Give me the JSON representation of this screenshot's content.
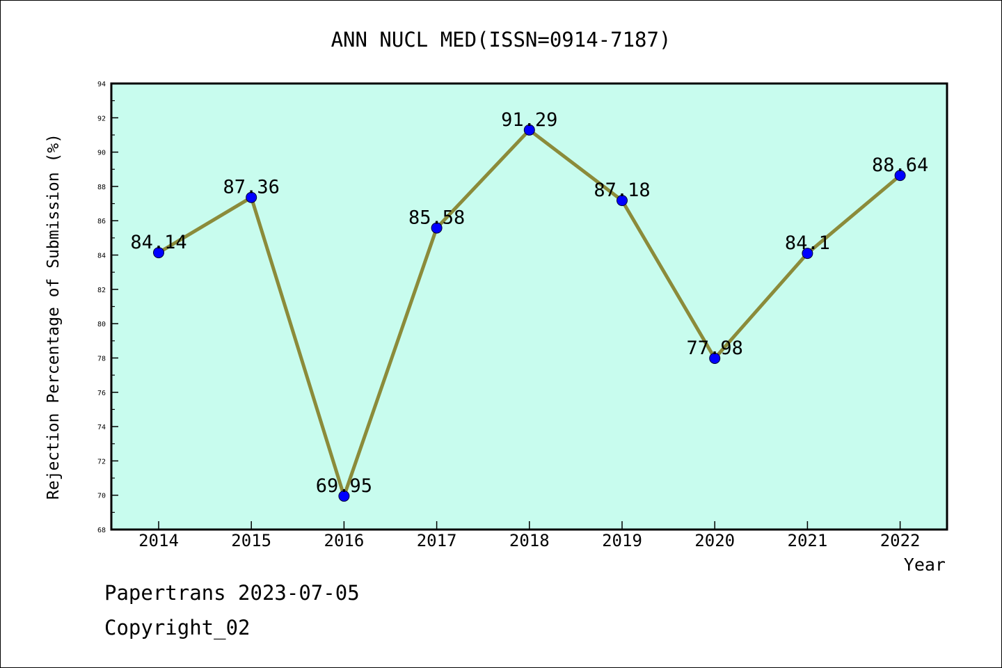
{
  "chart_data": {
    "type": "line",
    "title": "ANN NUCL MED(ISSN=0914-7187)",
    "xlabel": "Year",
    "ylabel": "Rejection Percentage of Submission (%)",
    "categories": [
      "2014",
      "2015",
      "2016",
      "2017",
      "2018",
      "2019",
      "2020",
      "2021",
      "2022"
    ],
    "values": [
      84.14,
      87.36,
      69.95,
      85.58,
      91.29,
      87.18,
      77.98,
      84.1,
      88.64
    ],
    "data_labels": [
      "84.14",
      "87.36",
      "69.95",
      "85.58",
      "91.29",
      "87.18",
      "77.98",
      "84.1",
      "88.64"
    ],
    "y_ticks": [
      "68",
      "70",
      "72",
      "74",
      "76",
      "78",
      "80",
      "82",
      "84",
      "86",
      "88",
      "90",
      "92",
      "94"
    ],
    "ylim": [
      68,
      94
    ],
    "grid": false,
    "legend": "none",
    "colors": {
      "plot_background": "#c8fcee",
      "line": "#8b8b3a",
      "marker": "#0000ff"
    }
  },
  "footer": {
    "line1": "Papertrans 2023-07-05",
    "line2": "Copyright_02"
  }
}
